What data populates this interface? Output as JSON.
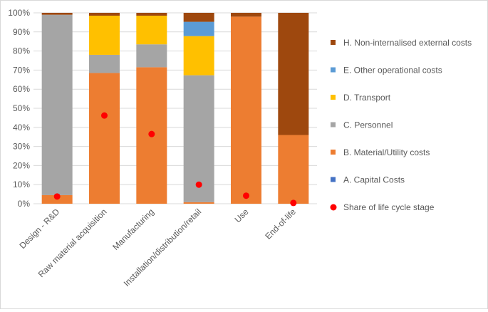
{
  "chart_data": {
    "type": "bar",
    "stacked": true,
    "percent": true,
    "categories": [
      "Design - R&D",
      "Raw material acquisition",
      "Manufacturing",
      "Installation/distribution/retail",
      "Use",
      "End-of-life"
    ],
    "series": [
      {
        "name": "A. Capital Costs",
        "color": "#4472c4",
        "values": [
          0,
          0,
          0,
          0,
          0,
          0
        ]
      },
      {
        "name": "B. Material/Utility costs",
        "color": "#ed7d31",
        "values": [
          4.5,
          68.5,
          71.5,
          0.8,
          98,
          36
        ]
      },
      {
        "name": "C. Personnel",
        "color": "#a5a5a5",
        "values": [
          94.5,
          9.5,
          12,
          66.5,
          0,
          0
        ]
      },
      {
        "name": "D. Transport",
        "color": "#ffc000",
        "values": [
          0,
          20.5,
          15,
          20.5,
          0,
          0
        ]
      },
      {
        "name": "E. Other operational costs",
        "color": "#5b9bd5",
        "values": [
          0,
          0,
          0,
          7.5,
          0,
          0
        ]
      },
      {
        "name": "H. Non-internalised external costs",
        "color": "#9e480e",
        "values": [
          1,
          1.5,
          1.5,
          4.7,
          2,
          64
        ]
      }
    ],
    "markers": {
      "name": "Share of life cycle stage",
      "color": "#ff0000",
      "values": [
        3.8,
        46.2,
        36.5,
        10,
        4.2,
        0.4
      ]
    },
    "ylim": [
      0,
      100
    ],
    "yticks": [
      "0%",
      "10%",
      "20%",
      "30%",
      "40%",
      "50%",
      "60%",
      "70%",
      "80%",
      "90%",
      "100%"
    ],
    "legend_order": [
      5,
      4,
      3,
      2,
      1,
      0
    ],
    "legend_position": "right",
    "grid": true
  }
}
